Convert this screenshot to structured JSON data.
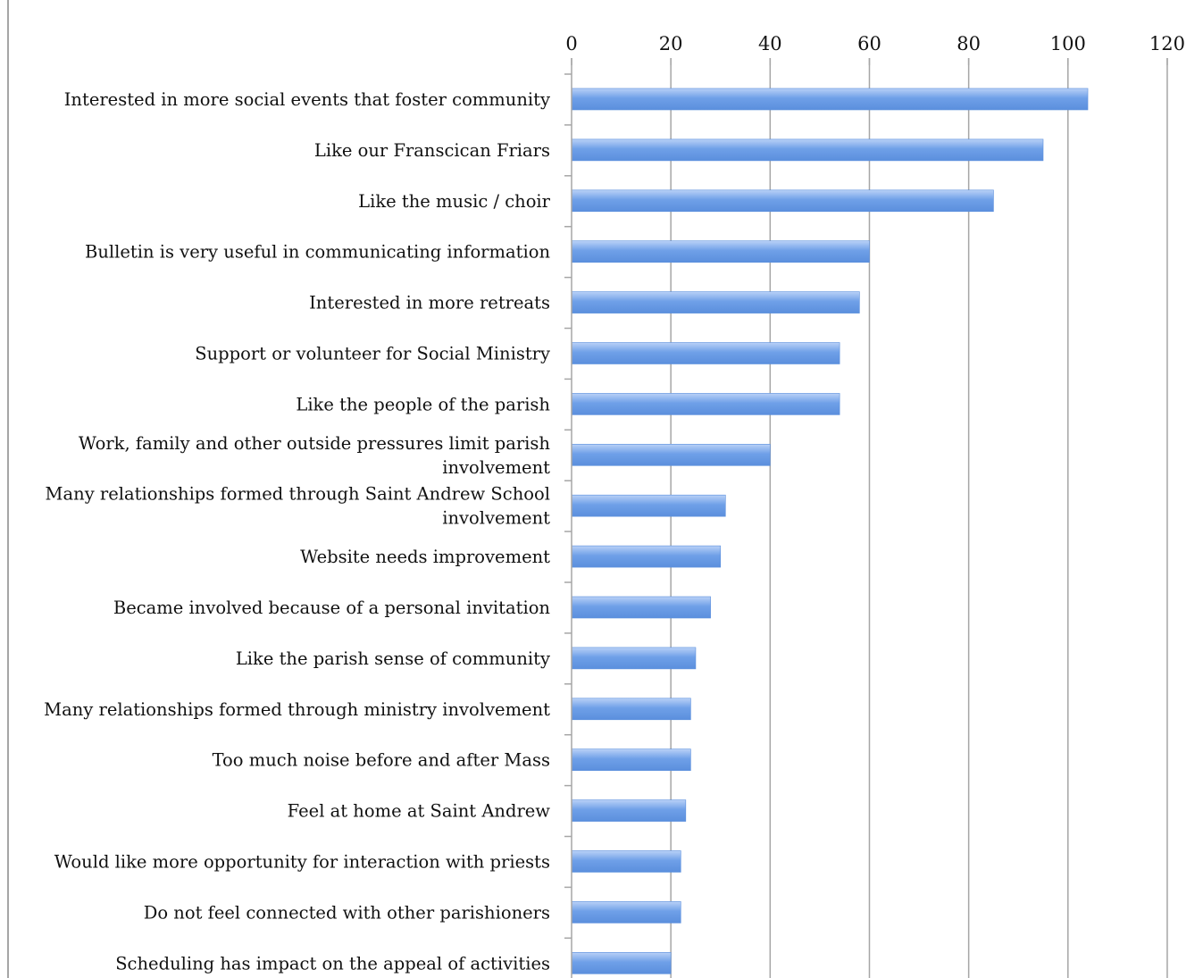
{
  "chart_data": {
    "type": "bar",
    "orientation": "horizontal",
    "title": "",
    "xlabel": "",
    "ylabel": "",
    "xlim": [
      0,
      120
    ],
    "ticks": [
      0,
      20,
      40,
      60,
      80,
      100,
      120
    ],
    "tick_labels": [
      "0",
      "20",
      "40",
      "60",
      "80",
      "100",
      "120"
    ],
    "axis_position": "top",
    "grid": true,
    "legend": "none",
    "bar_color": "#6fa0e8",
    "bar_color_light": "#b9d1f7",
    "gridline_color": "#a6a6a6",
    "categories": [
      [
        "Interested in more social events that foster community"
      ],
      [
        "Like our Franscican Friars"
      ],
      [
        "Like the music / choir"
      ],
      [
        "Bulletin is very useful in communicating information"
      ],
      [
        "Interested in more retreats"
      ],
      [
        "Support or volunteer for Social Ministry"
      ],
      [
        "Like the people of the parish"
      ],
      [
        "Work, family and other outside pressures limit parish",
        "involvement"
      ],
      [
        "Many relationships formed through Saint Andrew School",
        "involvement"
      ],
      [
        "Website needs improvement"
      ],
      [
        "Became involved because of a personal invitation"
      ],
      [
        "Like the parish sense of community"
      ],
      [
        "Many relationships formed through ministry involvement"
      ],
      [
        "Too much noise before and after Mass"
      ],
      [
        "Feel at home at Saint Andrew"
      ],
      [
        "Would like more opportunity for interaction with priests"
      ],
      [
        "Do not feel connected with other parishioners"
      ],
      [
        "Scheduling has impact on the appeal of activities"
      ]
    ],
    "values": [
      104,
      95,
      85,
      60,
      58,
      54,
      54,
      40,
      31,
      30,
      28,
      25,
      24,
      24,
      23,
      22,
      22,
      20
    ]
  }
}
